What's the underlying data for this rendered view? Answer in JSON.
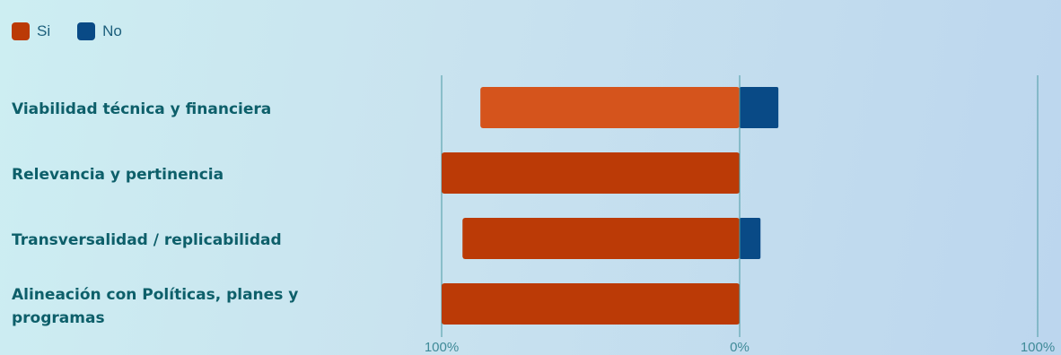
{
  "chart_data": {
    "type": "bar",
    "orientation": "horizontal-diverging",
    "categories": [
      "Viabilidad técnica y financiera",
      "Relevancia y pertinencia",
      "Transversalidad / replicabilidad",
      "Alineación con Políticas, planes y programas"
    ],
    "series": [
      {
        "name": "Si",
        "values": [
          87,
          100,
          93,
          100
        ],
        "color": "#bb3a06",
        "direction": "left"
      },
      {
        "name": "No",
        "values": [
          13,
          0,
          7,
          0
        ],
        "color": "#094a86",
        "direction": "right"
      }
    ],
    "highlight": {
      "category_index": 0,
      "color": "#d5541c"
    },
    "xlim": [
      -100,
      100
    ],
    "xticks": [
      "100%",
      "0%",
      "100%"
    ],
    "grid": true,
    "legend_position": "top-left"
  }
}
